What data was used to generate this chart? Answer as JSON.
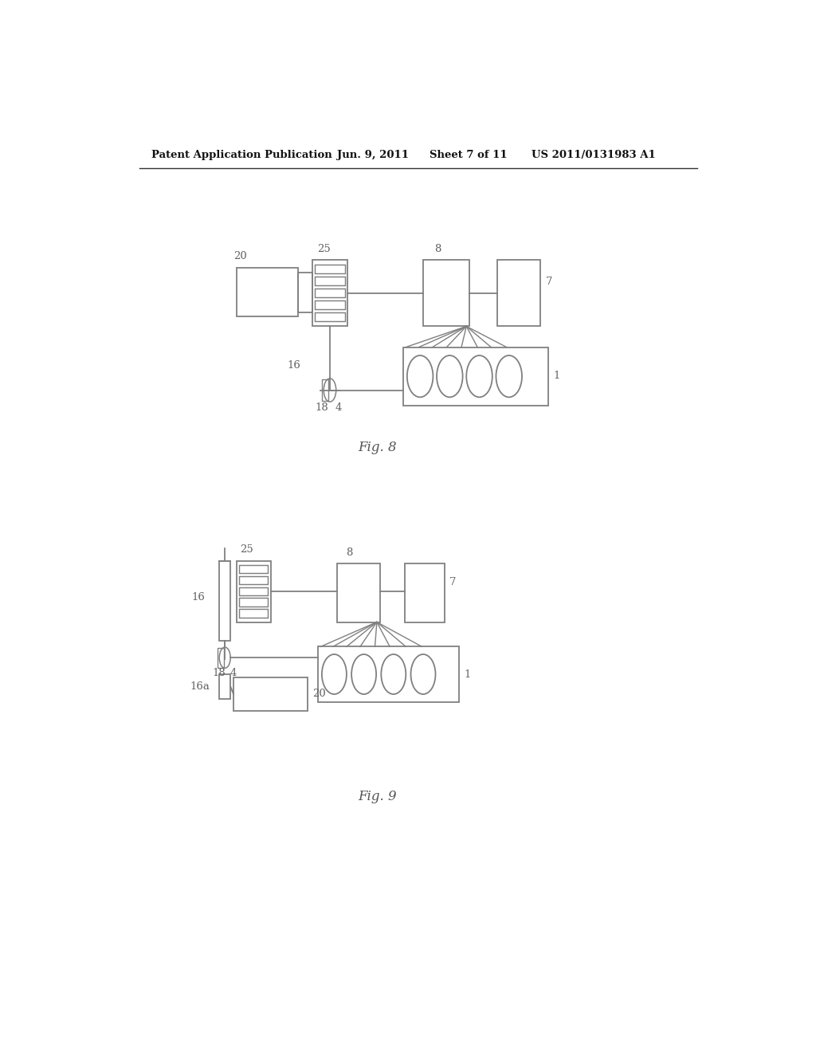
{
  "background_color": "#ffffff",
  "header_text": "Patent Application Publication",
  "header_date": "Jun. 9, 2011",
  "header_sheet": "Sheet 7 of 11",
  "header_patent": "US 2011/0131983 A1",
  "fig8_label": "Fig. 8",
  "fig9_label": "Fig. 9",
  "line_color": "#909090",
  "text_color": "#606060",
  "box_edge_color": "#808080"
}
